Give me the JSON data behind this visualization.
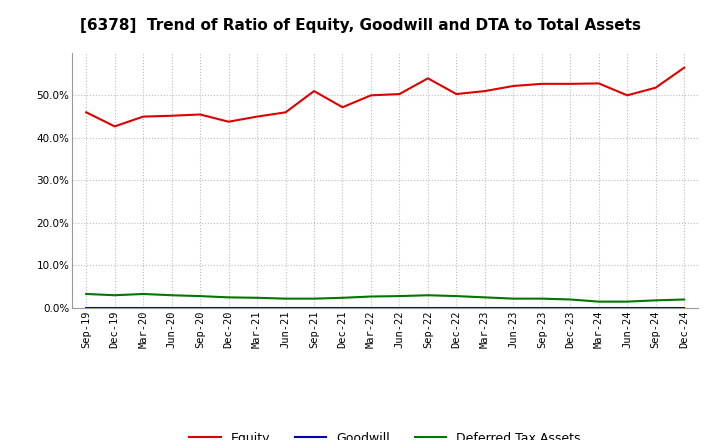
{
  "title": "[6378]  Trend of Ratio of Equity, Goodwill and DTA to Total Assets",
  "x_labels": [
    "Sep-19",
    "Dec-19",
    "Mar-20",
    "Jun-20",
    "Sep-20",
    "Dec-20",
    "Mar-21",
    "Jun-21",
    "Sep-21",
    "Dec-21",
    "Mar-22",
    "Jun-22",
    "Sep-22",
    "Dec-22",
    "Mar-23",
    "Jun-23",
    "Sep-23",
    "Dec-23",
    "Mar-24",
    "Jun-24",
    "Sep-24",
    "Dec-24"
  ],
  "equity": [
    0.46,
    0.427,
    0.45,
    0.452,
    0.455,
    0.438,
    0.45,
    0.46,
    0.51,
    0.472,
    0.5,
    0.503,
    0.54,
    0.503,
    0.51,
    0.522,
    0.527,
    0.527,
    0.528,
    0.5,
    0.518,
    0.565
  ],
  "goodwill": [
    0.0,
    0.0,
    0.0,
    0.0,
    0.0,
    0.0,
    0.0,
    0.0,
    0.0,
    0.0,
    0.0,
    0.0,
    0.0,
    0.0,
    0.0,
    0.0,
    0.0,
    0.0,
    0.0,
    0.0,
    0.0,
    0.0
  ],
  "dta": [
    0.033,
    0.03,
    0.033,
    0.03,
    0.028,
    0.025,
    0.024,
    0.022,
    0.022,
    0.024,
    0.027,
    0.028,
    0.03,
    0.028,
    0.025,
    0.022,
    0.022,
    0.02,
    0.015,
    0.015,
    0.018,
    0.02
  ],
  "equity_color": "#dd0000",
  "goodwill_color": "#0000bb",
  "dta_color": "#007700",
  "bg_color": "#ffffff",
  "plot_bg_color": "#ffffff",
  "grid_color": "#bbbbbb",
  "ylim": [
    0.0,
    0.6
  ],
  "yticks": [
    0.0,
    0.1,
    0.2,
    0.3,
    0.4,
    0.5
  ],
  "title_fontsize": 11,
  "tick_fontsize": 7.5,
  "legend_fontsize": 9
}
